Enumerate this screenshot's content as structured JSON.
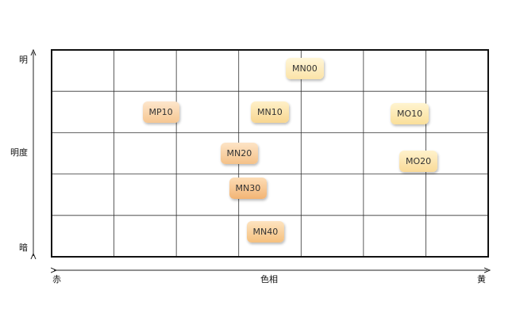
{
  "axes": {
    "y_top": "明",
    "y_mid": "明度",
    "y_bottom": "暗",
    "x_left": "赤",
    "x_mid": "色相",
    "x_right": "黄"
  },
  "grid": {
    "columns": 7,
    "rows": 5
  },
  "items": [
    {
      "label": "MN00",
      "hue": 0.58,
      "lightness": 0.91,
      "color_top": "#fff6d8",
      "color_bottom": "#fbe3a8"
    },
    {
      "label": "MP10",
      "hue": 0.25,
      "lightness": 0.7,
      "color_top": "#fde6cc",
      "color_bottom": "#f6c792"
    },
    {
      "label": "MN10",
      "hue": 0.5,
      "lightness": 0.7,
      "color_top": "#fff0c8",
      "color_bottom": "#f8d690"
    },
    {
      "label": "MO10",
      "hue": 0.82,
      "lightness": 0.69,
      "color_top": "#fff4d0",
      "color_bottom": "#fadf9a"
    },
    {
      "label": "MN20",
      "hue": 0.43,
      "lightness": 0.5,
      "color_top": "#fde4c6",
      "color_bottom": "#f4c188"
    },
    {
      "label": "MO20",
      "hue": 0.84,
      "lightness": 0.46,
      "color_top": "#fff2cc",
      "color_bottom": "#f9da98"
    },
    {
      "label": "MN30",
      "hue": 0.45,
      "lightness": 0.33,
      "color_top": "#fdddb6",
      "color_bottom": "#f2b474"
    },
    {
      "label": "MN40",
      "hue": 0.49,
      "lightness": 0.12,
      "color_top": "#fde4c0",
      "color_bottom": "#f5c07e"
    }
  ]
}
